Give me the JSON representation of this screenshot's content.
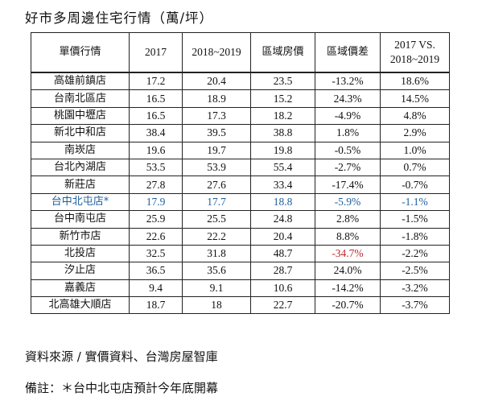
{
  "title": "好市多周邊住宅行情（萬/坪）",
  "table": {
    "headers": [
      "單價行情",
      "2017",
      "2018~2019",
      "區域房價",
      "區域價差",
      "2017 VS.",
      "2018~2019"
    ],
    "rows": [
      {
        "store": "高雄前鎮店",
        "y2017": "17.2",
        "y2018_2019": "20.4",
        "area_price": "23.5",
        "area_diff": "-13.2%",
        "change": "18.6%"
      },
      {
        "store": "台南北區店",
        "y2017": "16.5",
        "y2018_2019": "18.9",
        "area_price": "15.2",
        "area_diff": "24.3%",
        "change": "14.5%"
      },
      {
        "store": "桃園中壢店",
        "y2017": "16.5",
        "y2018_2019": "17.3",
        "area_price": "18.2",
        "area_diff": "-4.9%",
        "change": "4.8%"
      },
      {
        "store": "新北中和店",
        "y2017": "38.4",
        "y2018_2019": "39.5",
        "area_price": "38.8",
        "area_diff": "1.8%",
        "change": "2.9%"
      },
      {
        "store": "南崁店",
        "y2017": "19.6",
        "y2018_2019": "19.7",
        "area_price": "19.8",
        "area_diff": "-0.5%",
        "change": "1.0%"
      },
      {
        "store": "台北內湖店",
        "y2017": "53.5",
        "y2018_2019": "53.9",
        "area_price": "55.4",
        "area_diff": "-2.7%",
        "change": "0.7%"
      },
      {
        "store": "新莊店",
        "y2017": "27.8",
        "y2018_2019": "27.6",
        "area_price": "33.4",
        "area_diff": "-17.4%",
        "change": "-0.7%"
      },
      {
        "store": "台中北屯店*",
        "y2017": "17.9",
        "y2018_2019": "17.7",
        "area_price": "18.8",
        "area_diff": "-5.9%",
        "change": "-1.1%"
      },
      {
        "store": "台中南屯店",
        "y2017": "25.9",
        "y2018_2019": "25.5",
        "area_price": "24.8",
        "area_diff": "2.8%",
        "change": "-1.5%"
      },
      {
        "store": "新竹市店",
        "y2017": "22.6",
        "y2018_2019": "22.2",
        "area_price": "20.4",
        "area_diff": "8.8%",
        "change": "-1.8%"
      },
      {
        "store": "北投店",
        "y2017": "32.5",
        "y2018_2019": "31.8",
        "area_price": "48.7",
        "area_diff": "-34.7%",
        "change": "-2.2%"
      },
      {
        "store": "汐止店",
        "y2017": "36.5",
        "y2018_2019": "35.6",
        "area_price": "28.7",
        "area_diff": "24.0%",
        "change": "-2.5%"
      },
      {
        "store": "嘉義店",
        "y2017": "9.4",
        "y2018_2019": "9.1",
        "area_price": "10.6",
        "area_diff": "-14.2%",
        "change": "-3.2%"
      },
      {
        "store": "北高雄大順店",
        "y2017": "18.7",
        "y2018_2019": "18",
        "area_price": "22.7",
        "area_diff": "-20.7%",
        "change": "-3.7%"
      }
    ]
  },
  "colors": {
    "highlight_row": "#1f5f9e",
    "negative_alert": "#c0272d",
    "border": "#222222"
  },
  "source": "資料來源 / 實價資料、台灣房屋智庫",
  "note": "備註：＊台中北屯店預計今年底開幕"
}
